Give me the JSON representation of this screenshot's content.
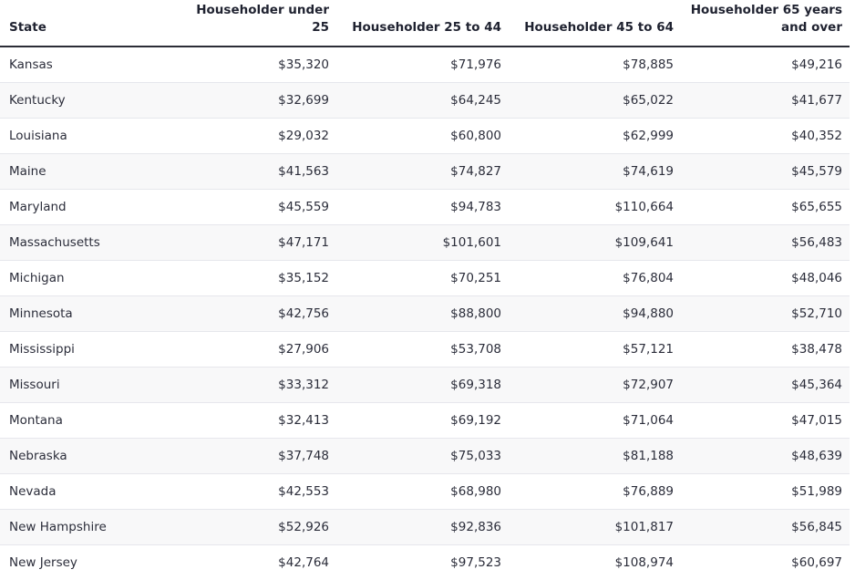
{
  "table": {
    "headers": [
      "State",
      "Householder under 25",
      "Householder 25 to 44",
      "Householder 45 to 64",
      "Householder 65 years and over"
    ],
    "rows": [
      [
        "Kansas",
        "$35,320",
        "$71,976",
        "$78,885",
        "$49,216"
      ],
      [
        "Kentucky",
        "$32,699",
        "$64,245",
        "$65,022",
        "$41,677"
      ],
      [
        "Louisiana",
        "$29,032",
        "$60,800",
        "$62,999",
        "$40,352"
      ],
      [
        "Maine",
        "$41,563",
        "$74,827",
        "$74,619",
        "$45,579"
      ],
      [
        "Maryland",
        "$45,559",
        "$94,783",
        "$110,664",
        "$65,655"
      ],
      [
        "Massachusetts",
        "$47,171",
        "$101,601",
        "$109,641",
        "$56,483"
      ],
      [
        "Michigan",
        "$35,152",
        "$70,251",
        "$76,804",
        "$48,046"
      ],
      [
        "Minnesota",
        "$42,756",
        "$88,800",
        "$94,880",
        "$52,710"
      ],
      [
        "Mississippi",
        "$27,906",
        "$53,708",
        "$57,121",
        "$38,478"
      ],
      [
        "Missouri",
        "$33,312",
        "$69,318",
        "$72,907",
        "$45,364"
      ],
      [
        "Montana",
        "$32,413",
        "$69,192",
        "$71,064",
        "$47,015"
      ],
      [
        "Nebraska",
        "$37,748",
        "$75,033",
        "$81,188",
        "$48,639"
      ],
      [
        "Nevada",
        "$42,553",
        "$68,980",
        "$76,889",
        "$51,989"
      ],
      [
        "New Hampshire",
        "$52,926",
        "$92,836",
        "$101,817",
        "$56,845"
      ],
      [
        "New Jersey",
        "$42,764",
        "$97,523",
        "$108,974",
        "$60,697"
      ]
    ]
  }
}
